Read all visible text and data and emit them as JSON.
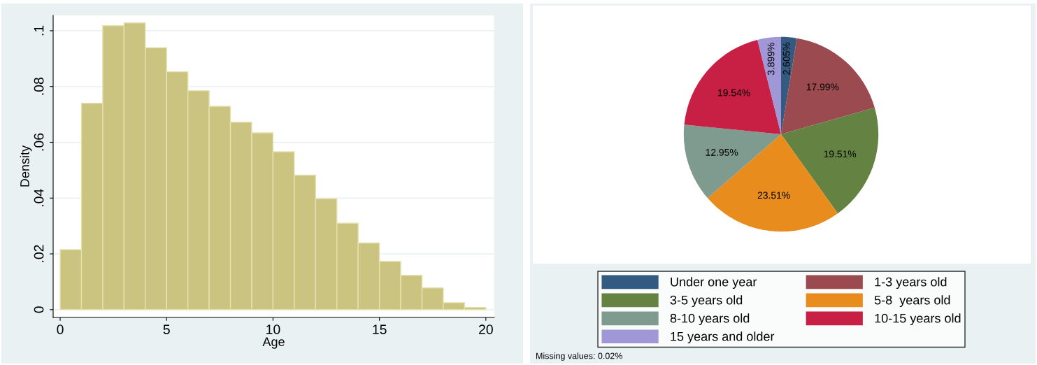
{
  "chart_data": [
    {
      "type": "histogram",
      "xlabel": "Age",
      "ylabel": "Density",
      "color": "#cbc380",
      "bins": [
        0,
        1,
        2,
        3,
        4,
        5,
        6,
        7,
        8,
        9,
        10,
        11,
        12,
        13,
        14,
        15,
        16,
        17,
        18,
        19,
        20
      ],
      "values": [
        0.0215,
        0.074,
        0.1018,
        0.1028,
        0.0939,
        0.0853,
        0.0785,
        0.0729,
        0.0672,
        0.0634,
        0.0566,
        0.0482,
        0.0398,
        0.031,
        0.0239,
        0.0173,
        0.0123,
        0.0078,
        0.0025,
        0.0008
      ],
      "xlim": [
        -0.33,
        20.4
      ],
      "ylim": [
        -0.0028,
        0.1055
      ],
      "xticks": [
        0,
        5,
        10,
        15,
        20
      ],
      "yticks": [
        0,
        {
          "value": 0.02,
          "label": ".02"
        },
        {
          "value": 0.04,
          "label": ".04"
        },
        {
          "value": 0.06,
          "label": ".06"
        },
        {
          "value": 0.08,
          "label": ".08"
        },
        {
          "value": 0.1,
          "label": ".1"
        }
      ],
      "grid": "y"
    },
    {
      "type": "pie",
      "categories": [
        "Under one year",
        "1-3 years old",
        "3-5 years old",
        "5-8  years old",
        "8-10 years old",
        "10-15 years old",
        "15 years and older"
      ],
      "values": [
        2.605,
        17.99,
        19.51,
        23.51,
        12.95,
        19.54,
        3.899
      ],
      "value_labels": [
        "2.605%",
        "17.99%",
        "19.51%",
        "23.51%",
        "12.95%",
        "19.54%",
        "3.899%"
      ],
      "colors": [
        "#335a80",
        "#9b4a4f",
        "#648241",
        "#e88c1e",
        "#7f9a8f",
        "#c81f45",
        "#a097d6"
      ],
      "legend": "bottom",
      "annotations": [
        "Missing values: 0.02%"
      ]
    }
  ]
}
